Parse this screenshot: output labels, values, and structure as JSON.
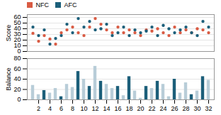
{
  "chart_data": [
    {
      "type": "scatter",
      "x": [
        1,
        2,
        3,
        4,
        5,
        6,
        7,
        8,
        9,
        10,
        11,
        12,
        13,
        14,
        15,
        16,
        17,
        18,
        19,
        20,
        21,
        22,
        23,
        24,
        25,
        26,
        27,
        28,
        29,
        30,
        31,
        32
      ],
      "series": [
        {
          "name": "NFC",
          "color": "#d95b43",
          "values": [
            32,
            18,
            28,
            22,
            13,
            33,
            38,
            43,
            33,
            28,
            43,
            58,
            48,
            38,
            33,
            43,
            33,
            38,
            33,
            28,
            38,
            36,
            40,
            33,
            28,
            43,
            33,
            38,
            33,
            40,
            38,
            33
          ]
        },
        {
          "name": "AFC",
          "color": "#1c5f7a",
          "values": [
            43,
            28,
            38,
            13,
            23,
            28,
            48,
            33,
            58,
            43,
            53,
            38,
            40,
            48,
            28,
            33,
            43,
            28,
            38,
            33,
            36,
            43,
            28,
            46,
            40,
            33,
            38,
            43,
            33,
            28,
            53,
            43
          ]
        }
      ],
      "ylabel": "Score",
      "xlim": [
        0,
        33
      ],
      "ylim": [
        0,
        65
      ],
      "yticks": [
        0,
        10,
        20,
        30,
        40,
        50,
        60
      ],
      "grid": true,
      "tick_labels": "y",
      "legend": "top"
    },
    {
      "type": "bar",
      "x": [
        1,
        2,
        3,
        4,
        5,
        6,
        7,
        8,
        9,
        10,
        11,
        12,
        13,
        14,
        15,
        16,
        17,
        18,
        19,
        20,
        21,
        22,
        23,
        24,
        25,
        26,
        27,
        28,
        29,
        30,
        31,
        32
      ],
      "values": [
        28,
        10,
        18,
        13,
        22,
        6,
        30,
        24,
        55,
        40,
        26,
        65,
        36,
        30,
        22,
        26,
        8,
        45,
        17,
        3,
        26,
        22,
        36,
        30,
        6,
        40,
        13,
        33,
        10,
        17,
        45,
        38
      ],
      "colors": [
        "#b8cdd8",
        "#b8cdd8",
        "#1c5f7a",
        "#b8cdd8",
        "#b8cdd8",
        "#1c5f7a",
        "#b8cdd8",
        "#b8cdd8",
        "#1c5f7a",
        "#b8cdd8",
        "#1c5f7a",
        "#b8cdd8",
        "#1c5f7a",
        "#b8cdd8",
        "#b8cdd8",
        "#1c5f7a",
        "#b8cdd8",
        "#1c5f7a",
        "#b8cdd8",
        "#b8cdd8",
        "#1c5f7a",
        "#b8cdd8",
        "#1c5f7a",
        "#b8cdd8",
        "#b8cdd8",
        "#1c5f7a",
        "#b8cdd8",
        "#b8cdd8",
        "#1c5f7a",
        "#b8cdd8",
        "#1c5f7a",
        "#b8cdd8"
      ],
      "ylabel": "Balance",
      "xlim": [
        0,
        33
      ],
      "xticks": [
        2,
        4,
        6,
        8,
        10,
        12,
        14,
        16,
        18,
        20,
        22,
        24,
        26,
        28,
        30,
        32
      ],
      "ylim": [
        0,
        80
      ],
      "yticks": [
        0,
        20,
        40,
        60,
        80
      ],
      "grid": true
    }
  ]
}
